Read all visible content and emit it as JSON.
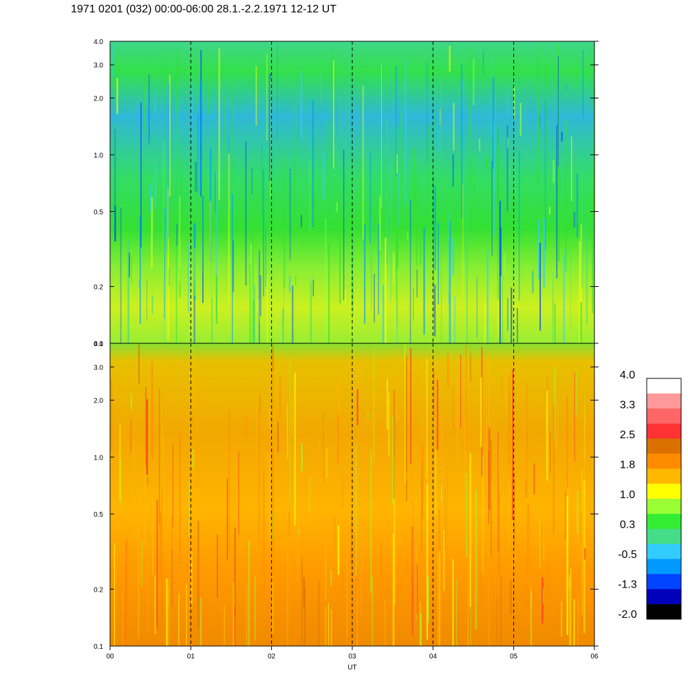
{
  "title": "1971 0201 (032) 00:00-06:00 28.1.-2.2.1971  12-12 UT",
  "chart_data": [
    {
      "type": "heatmap",
      "panel": "upper",
      "x_ticks": [
        "00",
        "01",
        "02",
        "03",
        "04",
        "05",
        "06"
      ],
      "x_range": [
        0,
        6
      ],
      "y_ticks": [
        "0.1",
        "0.2",
        "0.5",
        "1.0",
        "2.0",
        "3.0",
        "4.0"
      ],
      "y_tick_values": [
        0.1,
        0.2,
        0.5,
        1.0,
        2.0,
        3.0,
        4.0
      ],
      "y_range": [
        0.1,
        4.0
      ],
      "y_scale": "log",
      "dashed_vertical_lines_at": [
        1,
        2,
        3,
        4,
        5
      ],
      "dominant_colors": "green / blue / cyan at mid-upper frequencies, yellow-green at low frequencies"
    },
    {
      "type": "heatmap",
      "panel": "lower",
      "x_ticks": [
        "00",
        "01",
        "02",
        "03",
        "04",
        "05",
        "06"
      ],
      "x_range": [
        0,
        6
      ],
      "xlabel": "UT",
      "y_ticks": [
        "0.1",
        "0.2",
        "0.5",
        "1.0",
        "2.0",
        "3.0",
        "4.0"
      ],
      "y_tick_values": [
        0.1,
        0.2,
        0.5,
        1.0,
        2.0,
        3.0,
        4.0
      ],
      "y_range": [
        0.1,
        4.0
      ],
      "y_scale": "log",
      "dashed_vertical_lines_at": [
        1,
        2,
        3,
        4,
        5
      ],
      "dominant_colors": "orange / yellow, green near top frequencies"
    }
  ],
  "colorbar": {
    "labels": [
      "4.0",
      "3.3",
      "2.5",
      "1.8",
      "1.0",
      "0.3",
      "-0.5",
      "-1.3",
      "-2.0"
    ],
    "colors": [
      "#ffffff",
      "#ff9999",
      "#ff6666",
      "#ff3333",
      "#d97000",
      "#ff8c00",
      "#ffb800",
      "#ffff00",
      "#99ff33",
      "#33ee33",
      "#44dd88",
      "#33ccff",
      "#0099ff",
      "#0044ff",
      "#0000bb",
      "#000000"
    ]
  }
}
